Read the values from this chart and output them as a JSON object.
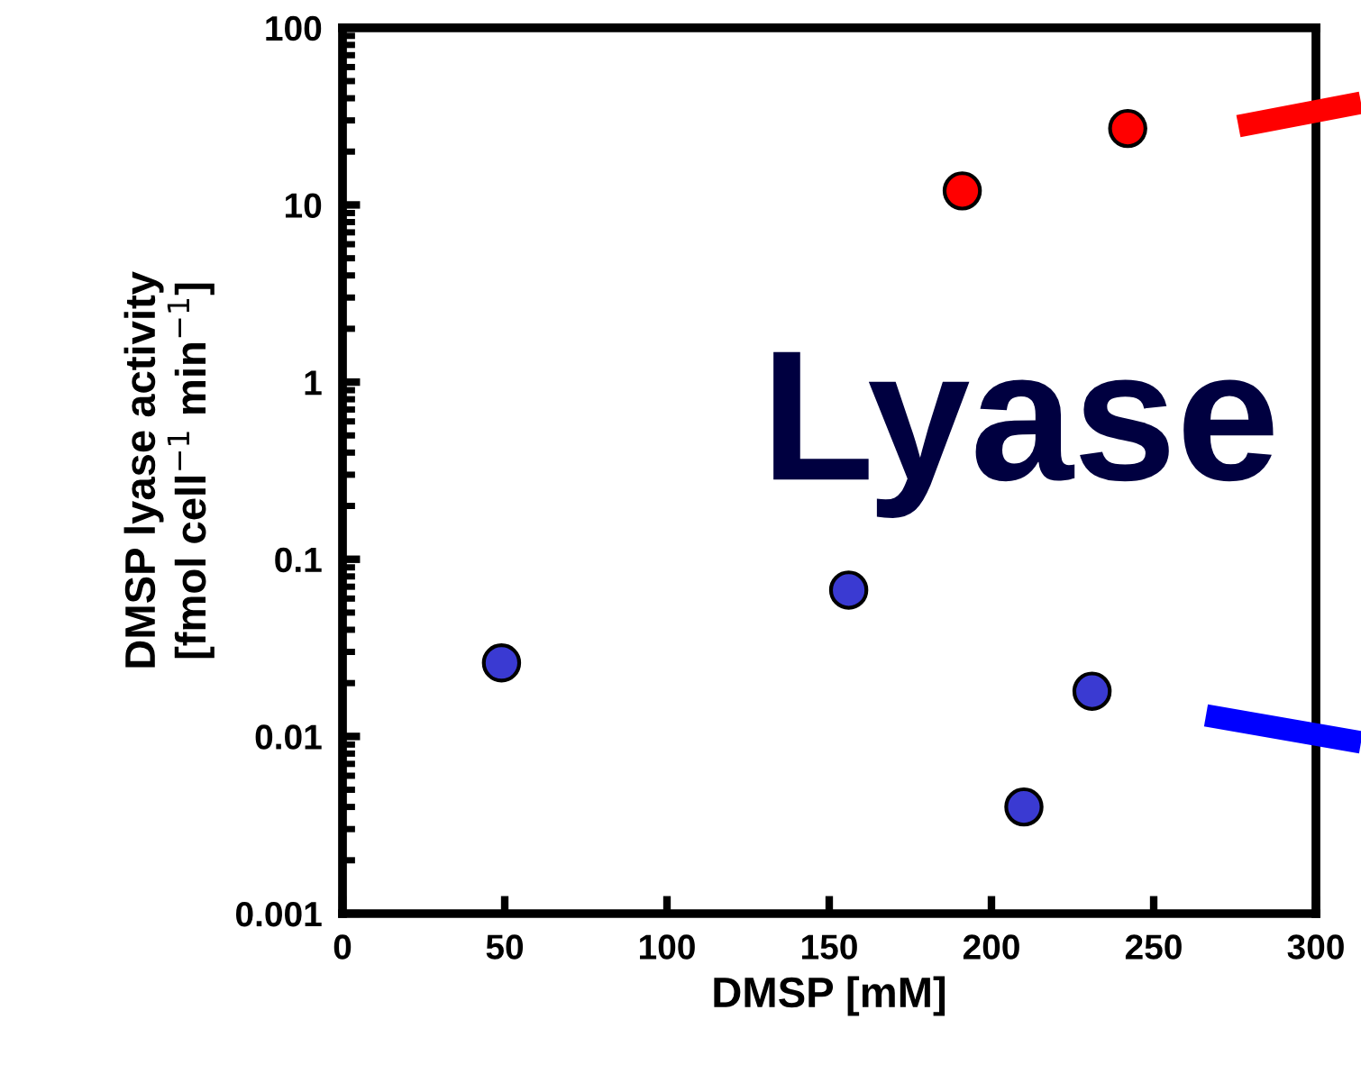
{
  "chart_data": {
    "type": "scatter",
    "xlabel": "DMSP [mM]",
    "ylabel": "DMSP lyase activity\n[fmol cell$^{−1}$ min$^{−1}$]",
    "series": [
      {
        "color": "#ff0000",
        "x": [
          191,
          242
        ],
        "values": [
          12,
          27
        ]
      },
      {
        "color": "#3a3ad2",
        "x": [
          49,
          156,
          210,
          231
        ],
        "values": [
          0.026,
          0.067,
          0.004,
          0.018
        ]
      }
    ],
    "xlim": [
      0,
      300
    ],
    "xticks": [
      0,
      50,
      100,
      150,
      200,
      250,
      300
    ],
    "ylim": [
      0.001,
      100
    ],
    "yticks": [
      0.001,
      0.01,
      0.1,
      1,
      10,
      100
    ],
    "log": "y",
    "marker": "circle",
    "grid": false,
    "legend": false,
    "annotations": [
      "Lyase"
    ]
  }
}
